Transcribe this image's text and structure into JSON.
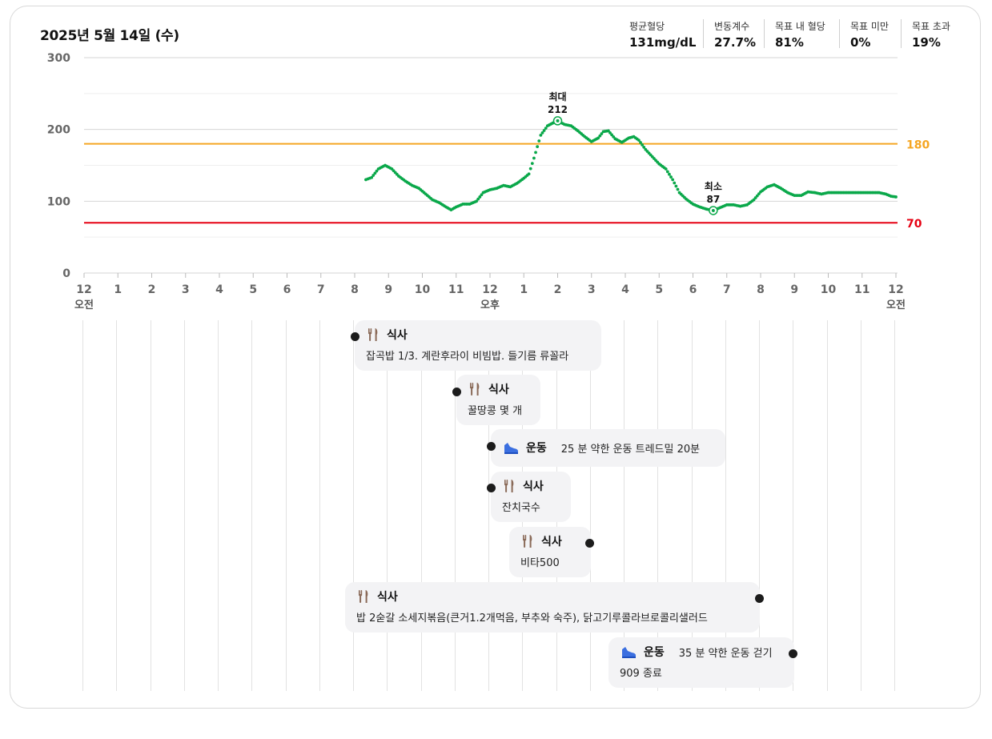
{
  "header": {
    "date": "2025년 5월 14일 (수)"
  },
  "stats": [
    {
      "label": "평균혈당",
      "value": "131mg/dL"
    },
    {
      "label": "변동계수",
      "value": "27.7%"
    },
    {
      "label": "목표 내 혈당",
      "value": "81%"
    },
    {
      "label": "목표 미만",
      "value": "0%"
    },
    {
      "label": "목표 초과",
      "value": "19%"
    }
  ],
  "chart_data": {
    "type": "line",
    "title": "",
    "xlabel": "",
    "ylabel": "",
    "ylim": [
      0,
      300
    ],
    "xlim": [
      0,
      24
    ],
    "yticks": [
      0,
      100,
      200,
      300
    ],
    "xtick_labels": [
      "12",
      "1",
      "2",
      "3",
      "4",
      "5",
      "6",
      "7",
      "8",
      "9",
      "10",
      "11",
      "12",
      "1",
      "2",
      "3",
      "4",
      "5",
      "6",
      "7",
      "8",
      "9",
      "10",
      "11",
      "12"
    ],
    "period_labels": [
      {
        "hour": 0,
        "text": "오전"
      },
      {
        "hour": 12,
        "text": "오후"
      },
      {
        "hour": 24,
        "text": "오전"
      }
    ],
    "thresholds": [
      {
        "value": 180,
        "label": "180",
        "color": "#f5a623"
      },
      {
        "value": 70,
        "label": "70",
        "color": "#e60012"
      }
    ],
    "annotations": [
      {
        "x": 14.0,
        "y": 212,
        "label": "최대",
        "value": "212"
      },
      {
        "x": 18.6,
        "y": 87,
        "label": "최소",
        "value": "87"
      }
    ],
    "series": [
      {
        "color": "#0aa84a",
        "points": [
          [
            8.33,
            130
          ],
          [
            8.5,
            133
          ],
          [
            8.7,
            145
          ],
          [
            8.9,
            150
          ],
          [
            9.1,
            145
          ],
          [
            9.3,
            135
          ],
          [
            9.5,
            128
          ],
          [
            9.7,
            122
          ],
          [
            9.9,
            118
          ],
          [
            10.1,
            110
          ],
          [
            10.3,
            102
          ],
          [
            10.5,
            98
          ],
          [
            10.7,
            92
          ],
          [
            10.85,
            88
          ],
          [
            11.0,
            92
          ],
          [
            11.2,
            96
          ],
          [
            11.4,
            96
          ],
          [
            11.6,
            100
          ],
          [
            11.8,
            112
          ],
          [
            12.0,
            116
          ],
          [
            12.2,
            118
          ],
          [
            12.4,
            122
          ],
          [
            12.6,
            120
          ],
          [
            12.8,
            125
          ],
          [
            13.0,
            132
          ],
          [
            13.15,
            138
          ],
          [
            13.3,
            160
          ],
          [
            13.5,
            192
          ],
          [
            13.7,
            205
          ],
          [
            13.9,
            210
          ],
          [
            14.0,
            212
          ],
          [
            14.2,
            207
          ],
          [
            14.4,
            205
          ],
          [
            14.6,
            198
          ],
          [
            14.8,
            190
          ],
          [
            15.0,
            183
          ],
          [
            15.2,
            188
          ],
          [
            15.35,
            197
          ],
          [
            15.5,
            198
          ],
          [
            15.7,
            187
          ],
          [
            15.9,
            182
          ],
          [
            16.1,
            188
          ],
          [
            16.25,
            190
          ],
          [
            16.4,
            185
          ],
          [
            16.6,
            172
          ],
          [
            16.8,
            162
          ],
          [
            17.0,
            152
          ],
          [
            17.2,
            145
          ],
          [
            17.4,
            130
          ],
          [
            17.6,
            112
          ],
          [
            17.8,
            103
          ],
          [
            18.0,
            96
          ],
          [
            18.2,
            92
          ],
          [
            18.4,
            89
          ],
          [
            18.6,
            87
          ],
          [
            18.8,
            91
          ],
          [
            19.0,
            95
          ],
          [
            19.2,
            95
          ],
          [
            19.4,
            93
          ],
          [
            19.6,
            95
          ],
          [
            19.8,
            102
          ],
          [
            20.0,
            113
          ],
          [
            20.2,
            120
          ],
          [
            20.4,
            123
          ],
          [
            20.6,
            118
          ],
          [
            20.8,
            112
          ],
          [
            21.0,
            108
          ],
          [
            21.2,
            108
          ],
          [
            21.4,
            113
          ],
          [
            21.6,
            112
          ],
          [
            21.8,
            110
          ],
          [
            22.0,
            112
          ],
          [
            22.4,
            112
          ],
          [
            22.8,
            112
          ],
          [
            23.2,
            112
          ],
          [
            23.5,
            112
          ],
          [
            23.7,
            110
          ],
          [
            23.85,
            107
          ],
          [
            24.0,
            106
          ]
        ]
      }
    ]
  },
  "events": [
    {
      "kind": "meal",
      "title": "식사",
      "note": "잡곡밥 1/3. 계란후라이 비빔밥. 들기름 류꼴라"
    },
    {
      "kind": "meal",
      "title": "식사",
      "note": "꿀땅콩 몇 개"
    },
    {
      "kind": "exercise",
      "title": "운동",
      "note": "25 분 약한 운동 트레드밀 20분"
    },
    {
      "kind": "meal",
      "title": "식사",
      "note": "잔치국수"
    },
    {
      "kind": "meal",
      "title": "식사",
      "note": "비타500"
    },
    {
      "kind": "meal",
      "title": "식사",
      "note": "밥 2숟갈 소세지볶음(큰거1.2개먹음, 부추와 숙주), 닭고기루콜라브로콜리샐러드"
    },
    {
      "kind": "exercise",
      "title": "운동",
      "note": "35 분 약한 운동 걷기",
      "note2": "909 종료"
    }
  ],
  "colors": {
    "line": "#0aa84a",
    "high": "#f5a623",
    "low": "#e60012",
    "meal_icon": "#8a6a58",
    "exercise_icon": "#3b6fe0"
  }
}
